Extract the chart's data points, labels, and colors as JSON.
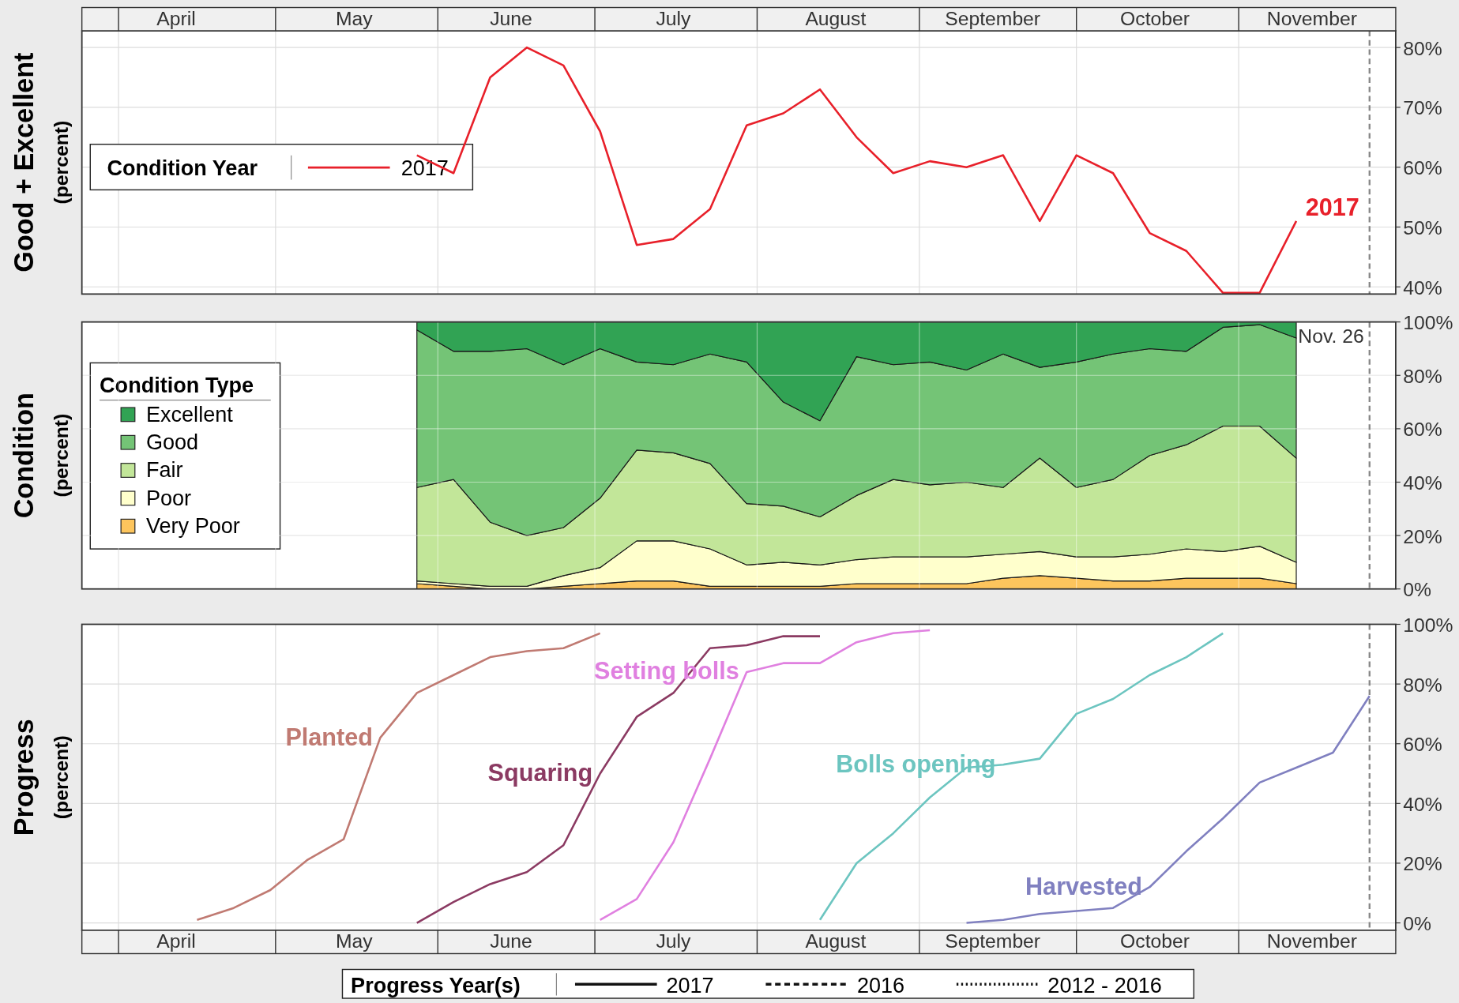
{
  "chart_data": [
    {
      "type": "line",
      "ylabel": "Good + Excellent",
      "annotations": [
        "(percent)"
      ],
      "legend_title": "Condition Year",
      "legend": "left",
      "grid": true,
      "xlim": [
        "--03-25",
        "--12-01"
      ],
      "xticks": [
        {
          "value": "--04-01",
          "label": null
        },
        {
          "value": "--05-01",
          "label": null
        },
        {
          "value": "--06-01",
          "label": null
        },
        {
          "value": "--07-01",
          "label": null
        },
        {
          "value": "--08-01",
          "label": null
        },
        {
          "value": "--09-01",
          "label": null
        },
        {
          "value": "--10-01",
          "label": null
        },
        {
          "value": "--11-01",
          "label": null
        },
        {
          "value": "--04-12",
          "label": "April"
        },
        {
          "value": "--05-16",
          "label": "May"
        },
        {
          "value": "--06-15",
          "label": "June"
        },
        {
          "value": "--07-16",
          "label": "July"
        },
        {
          "value": "--08-16",
          "label": "August"
        },
        {
          "value": "--09-15",
          "label": "September"
        },
        {
          "value": "--10-16",
          "label": "October"
        },
        {
          "value": "--11-15",
          "label": "November"
        }
      ],
      "ylim": [
        38.8,
        82.8
      ],
      "yticks": [
        {
          "value": 40,
          "label": "40%"
        },
        {
          "value": 50,
          "label": "50%"
        },
        {
          "value": 60,
          "label": "60%"
        },
        {
          "value": 70,
          "label": "70%"
        },
        {
          "value": 80,
          "label": "80%"
        }
      ],
      "x": [
        "--05-28",
        "--06-04",
        "--06-11",
        "--06-18",
        "--06-25",
        "--07-02",
        "--07-09",
        "--07-16",
        "--07-23",
        "--07-30",
        "--08-06",
        "--08-13",
        "--08-20",
        "--08-27",
        "--09-03",
        "--09-10",
        "--09-17",
        "--09-24",
        "--10-01",
        "--10-08",
        "--10-15",
        "--10-22",
        "--10-29",
        "--11-05",
        "--11-12"
      ],
      "ref_lines": [
        {
          "axis": "x",
          "value": "--11-26",
          "color": "#888888",
          "line_style": "dashed"
        }
      ],
      "series": [
        {
          "name": "2017",
          "color": "#e8202a",
          "values": [
            62,
            59,
            75,
            80,
            77,
            66,
            47,
            48,
            53,
            67,
            69,
            73,
            65,
            59,
            61,
            60,
            62,
            51,
            62,
            59,
            49,
            46,
            39,
            39,
            51
          ]
        }
      ]
    },
    {
      "type": "area",
      "stacked": true,
      "ylabel": "Condition",
      "annotations": [
        "(percent)"
      ],
      "legend_title": "Condition Type",
      "legend": "left",
      "grid": true,
      "tick_labels": "y",
      "xlim": [
        "--03-25",
        "--12-01"
      ],
      "xticks": [
        {
          "value": "--04-01",
          "label": null
        },
        {
          "value": "--05-01",
          "label": null
        },
        {
          "value": "--06-01",
          "label": null
        },
        {
          "value": "--07-01",
          "label": null
        },
        {
          "value": "--08-01",
          "label": null
        },
        {
          "value": "--09-01",
          "label": null
        },
        {
          "value": "--10-01",
          "label": null
        },
        {
          "value": "--11-01",
          "label": null
        }
      ],
      "ylim": [
        0,
        100
      ],
      "yticks": [
        {
          "value": 0,
          "label": "0%"
        },
        {
          "value": 20,
          "label": "20%"
        },
        {
          "value": 40,
          "label": "40%"
        },
        {
          "value": 60,
          "label": "60%"
        },
        {
          "value": 80,
          "label": "80%"
        },
        {
          "value": 100,
          "label": "100%"
        }
      ],
      "x": [
        "--05-28",
        "--06-04",
        "--06-11",
        "--06-18",
        "--06-25",
        "--07-02",
        "--07-09",
        "--07-16",
        "--07-23",
        "--07-30",
        "--08-06",
        "--08-13",
        "--08-20",
        "--08-27",
        "--09-03",
        "--09-10",
        "--09-17",
        "--09-24",
        "--10-01",
        "--10-08",
        "--10-15",
        "--10-22",
        "--10-29",
        "--11-05",
        "--11-12"
      ],
      "ref_lines": [
        {
          "axis": "x",
          "value": "--11-26",
          "label": "Nov. 26",
          "color": "#888888",
          "line_style": "dashed"
        }
      ],
      "series": [
        {
          "name": "Very Poor",
          "color": "#fdc55d",
          "values": [
            2,
            1,
            0,
            0,
            1,
            2,
            3,
            3,
            1,
            1,
            1,
            1,
            2,
            2,
            2,
            2,
            4,
            5,
            4,
            3,
            3,
            4,
            4,
            4,
            2
          ]
        },
        {
          "name": "Poor",
          "color": "#ffffcc",
          "values": [
            1,
            1,
            1,
            1,
            4,
            6,
            15,
            15,
            14,
            8,
            9,
            8,
            9,
            10,
            10,
            10,
            9,
            9,
            8,
            9,
            10,
            11,
            10,
            12,
            8
          ]
        },
        {
          "name": "Fair",
          "color": "#c2e699",
          "values": [
            35,
            39,
            24,
            19,
            18,
            26,
            34,
            33,
            32,
            23,
            21,
            18,
            24,
            29,
            27,
            28,
            25,
            35,
            26,
            29,
            37,
            39,
            47,
            45,
            39
          ]
        },
        {
          "name": "Good",
          "color": "#74c476",
          "values": [
            59,
            48,
            64,
            70,
            61,
            56,
            33,
            33,
            41,
            53,
            39,
            36,
            52,
            43,
            46,
            42,
            50,
            34,
            47,
            47,
            40,
            35,
            37,
            38,
            45
          ]
        },
        {
          "name": "Excellent",
          "color": "#31a354",
          "values": [
            3,
            11,
            11,
            10,
            16,
            10,
            15,
            16,
            12,
            15,
            30,
            37,
            13,
            16,
            15,
            18,
            12,
            17,
            15,
            12,
            10,
            11,
            2,
            1,
            6
          ]
        }
      ]
    },
    {
      "type": "line",
      "ylabel": "Progress",
      "annotations": [
        "(percent)",
        "2017",
        "2016",
        "2012 - 2016"
      ],
      "legend_title": "Progress Year(s)",
      "legend": "bottom",
      "grid": true,
      "xlim": [
        "--03-25",
        "--12-01"
      ],
      "xticks": [
        {
          "value": "--04-01",
          "label": null
        },
        {
          "value": "--05-01",
          "label": null
        },
        {
          "value": "--06-01",
          "label": null
        },
        {
          "value": "--07-01",
          "label": null
        },
        {
          "value": "--08-01",
          "label": null
        },
        {
          "value": "--09-01",
          "label": null
        },
        {
          "value": "--10-01",
          "label": null
        },
        {
          "value": "--11-01",
          "label": null
        },
        {
          "value": "--04-12",
          "label": "April"
        },
        {
          "value": "--05-16",
          "label": "May"
        },
        {
          "value": "--06-15",
          "label": "June"
        },
        {
          "value": "--07-16",
          "label": "July"
        },
        {
          "value": "--08-16",
          "label": "August"
        },
        {
          "value": "--09-15",
          "label": "September"
        },
        {
          "value": "--10-16",
          "label": "October"
        },
        {
          "value": "--11-15",
          "label": "November"
        }
      ],
      "ylim": [
        -2.5,
        100
      ],
      "yticks": [
        {
          "value": 0,
          "label": "0%"
        },
        {
          "value": 20,
          "label": "20%"
        },
        {
          "value": 40,
          "label": "40%"
        },
        {
          "value": 60,
          "label": "60%"
        },
        {
          "value": 80,
          "label": "80%"
        },
        {
          "value": 100,
          "label": "100%"
        }
      ],
      "ref_lines": [
        {
          "axis": "x",
          "value": "--11-26",
          "color": "#888888",
          "line_style": "dashed"
        }
      ],
      "series": [
        {
          "name": "Planted",
          "color": "#c07a72",
          "x": [
            "--04-16",
            "--04-23",
            "--04-30",
            "--05-07",
            "--05-14",
            "--05-21",
            "--05-28",
            "--06-04",
            "--06-11",
            "--06-18",
            "--06-25",
            "--07-02"
          ],
          "values": [
            1,
            5,
            11,
            21,
            28,
            62,
            77,
            83,
            89,
            91,
            92,
            97
          ]
        },
        {
          "name": "Squaring",
          "color": "#8b3a62",
          "x": [
            "--05-28",
            "--06-04",
            "--06-11",
            "--06-18",
            "--06-25",
            "--07-02",
            "--07-09",
            "--07-16",
            "--07-23",
            "--07-30",
            "--08-06",
            "--08-13"
          ],
          "values": [
            0,
            7,
            13,
            17,
            26,
            50,
            69,
            77,
            92,
            93,
            96,
            96
          ]
        },
        {
          "name": "Setting bolls",
          "color": "#e080e0",
          "x": [
            "--07-02",
            "--07-09",
            "--07-16",
            "--07-23",
            "--07-30",
            "--08-06",
            "--08-13",
            "--08-20",
            "--08-27",
            "--09-03"
          ],
          "values": [
            1,
            8,
            27,
            55,
            84,
            87,
            87,
            94,
            97,
            98
          ]
        },
        {
          "name": "Bolls opening",
          "color": "#6cc5c0",
          "x": [
            "--08-13",
            "--08-20",
            "--08-27",
            "--09-03",
            "--09-10",
            "--09-17",
            "--09-24",
            "--10-01",
            "--10-08",
            "--10-15",
            "--10-22",
            "--10-29"
          ],
          "values": [
            1,
            20,
            30,
            42,
            52,
            53,
            55,
            70,
            75,
            83,
            89,
            97
          ]
        },
        {
          "name": "Harvested",
          "color": "#8080c0",
          "x": [
            "--09-10",
            "--09-17",
            "--09-24",
            "--10-01",
            "--10-08",
            "--10-15",
            "--10-22",
            "--10-29",
            "--11-05",
            "--11-12",
            "--11-19",
            "--11-26"
          ],
          "values": [
            0,
            1,
            3,
            4,
            5,
            12,
            24,
            35,
            47,
            52,
            57,
            76
          ]
        }
      ]
    }
  ]
}
